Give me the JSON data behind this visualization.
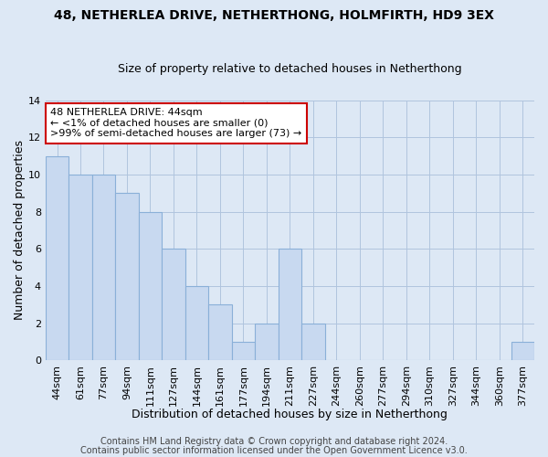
{
  "title": "48, NETHERLEA DRIVE, NETHERTHONG, HOLMFIRTH, HD9 3EX",
  "subtitle": "Size of property relative to detached houses in Netherthong",
  "xlabel": "Distribution of detached houses by size in Netherthong",
  "ylabel": "Number of detached properties",
  "bar_labels": [
    "44sqm",
    "61sqm",
    "77sqm",
    "94sqm",
    "111sqm",
    "127sqm",
    "144sqm",
    "161sqm",
    "177sqm",
    "194sqm",
    "211sqm",
    "227sqm",
    "244sqm",
    "260sqm",
    "277sqm",
    "294sqm",
    "310sqm",
    "327sqm",
    "344sqm",
    "360sqm",
    "377sqm"
  ],
  "bar_heights": [
    11,
    10,
    10,
    9,
    8,
    6,
    4,
    3,
    1,
    2,
    6,
    2,
    0,
    0,
    0,
    0,
    0,
    0,
    0,
    0,
    1
  ],
  "bar_color": "#c8d9f0",
  "bar_edge_color": "#8ab0d8",
  "annotation_text": "48 NETHERLEA DRIVE: 44sqm\n← <1% of detached houses are smaller (0)\n>99% of semi-detached houses are larger (73) →",
  "annotation_box_color": "#ffffff",
  "annotation_box_edge": "#cc0000",
  "footer1": "Contains HM Land Registry data © Crown copyright and database right 2024.",
  "footer2": "Contains public sector information licensed under the Open Government Licence v3.0.",
  "ylim": [
    0,
    14
  ],
  "yticks": [
    0,
    2,
    4,
    6,
    8,
    10,
    12,
    14
  ],
  "background_color": "#dde8f5",
  "plot_bg_color": "#dde8f5",
  "grid_color": "#b0c4de",
  "title_fontsize": 10,
  "subtitle_fontsize": 9,
  "axis_label_fontsize": 9,
  "tick_fontsize": 8,
  "annotation_fontsize": 8,
  "footer_fontsize": 7
}
